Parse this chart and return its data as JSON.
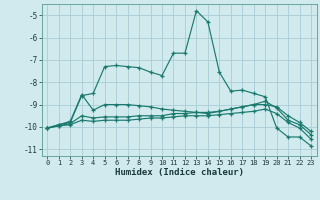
{
  "xlabel": "Humidex (Indice chaleur)",
  "bg_color": "#d0eaee",
  "grid_color": "#aacdd6",
  "line_color": "#1a7a6e",
  "xlim": [
    -0.5,
    23.5
  ],
  "ylim": [
    -11.3,
    -4.5
  ],
  "yticks": [
    -11,
    -10,
    -9,
    -8,
    -7,
    -6,
    -5
  ],
  "xticks": [
    0,
    1,
    2,
    3,
    4,
    5,
    6,
    7,
    8,
    9,
    10,
    11,
    12,
    13,
    14,
    15,
    16,
    17,
    18,
    19,
    20,
    21,
    22,
    23
  ],
  "series1_x": [
    0,
    1,
    2,
    3,
    4,
    5,
    6,
    7,
    8,
    9,
    10,
    11,
    12,
    13,
    14,
    15,
    16,
    17,
    18,
    19,
    20,
    21,
    22,
    23
  ],
  "series1_y": [
    -10.05,
    -9.9,
    -9.8,
    -8.6,
    -8.5,
    -7.3,
    -7.25,
    -7.3,
    -7.35,
    -7.55,
    -7.7,
    -6.7,
    -6.7,
    -4.8,
    -5.3,
    -7.55,
    -8.4,
    -8.35,
    -8.5,
    -8.65,
    -10.05,
    -10.45,
    -10.45,
    -10.85
  ],
  "series2_x": [
    0,
    1,
    2,
    3,
    4,
    5,
    6,
    7,
    8,
    9,
    10,
    11,
    12,
    13,
    14,
    15,
    16,
    17,
    18,
    19,
    20,
    21,
    22,
    23
  ],
  "series2_y": [
    -10.05,
    -9.9,
    -9.75,
    -8.55,
    -9.25,
    -9.0,
    -9.0,
    -9.0,
    -9.05,
    -9.1,
    -9.2,
    -9.25,
    -9.3,
    -9.35,
    -9.4,
    -9.3,
    -9.2,
    -9.1,
    -9.0,
    -9.0,
    -9.1,
    -9.5,
    -9.8,
    -10.2
  ],
  "series3_x": [
    0,
    1,
    2,
    3,
    4,
    5,
    6,
    7,
    8,
    9,
    10,
    11,
    12,
    13,
    14,
    15,
    16,
    17,
    18,
    19,
    20,
    21,
    22,
    23
  ],
  "series3_y": [
    -10.05,
    -9.95,
    -9.85,
    -9.5,
    -9.6,
    -9.55,
    -9.55,
    -9.55,
    -9.5,
    -9.5,
    -9.5,
    -9.4,
    -9.4,
    -9.35,
    -9.35,
    -9.3,
    -9.2,
    -9.1,
    -9.0,
    -8.85,
    -9.15,
    -9.7,
    -9.9,
    -10.35
  ],
  "series4_x": [
    0,
    1,
    2,
    3,
    4,
    5,
    6,
    7,
    8,
    9,
    10,
    11,
    12,
    13,
    14,
    15,
    16,
    17,
    18,
    19,
    20,
    21,
    22,
    23
  ],
  "series4_y": [
    -10.05,
    -9.95,
    -9.9,
    -9.7,
    -9.75,
    -9.7,
    -9.7,
    -9.7,
    -9.65,
    -9.6,
    -9.6,
    -9.55,
    -9.5,
    -9.5,
    -9.5,
    -9.45,
    -9.4,
    -9.35,
    -9.3,
    -9.2,
    -9.4,
    -9.8,
    -10.05,
    -10.55
  ]
}
